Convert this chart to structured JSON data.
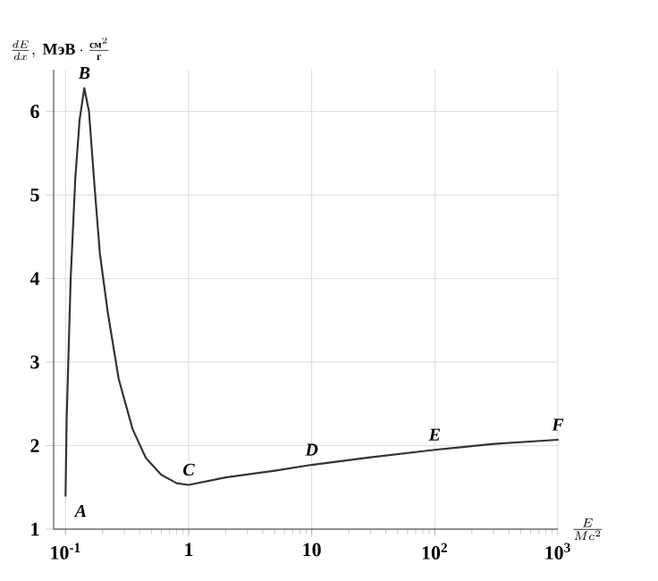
{
  "chart_data": {
    "type": "line",
    "xlabel": "\\frac{E}{Mc^2}",
    "ylabel": "\\frac{dE}{dx},\\ \\text{МэВ}\\cdot\\frac{\\text{см}^2}{\\text{г}}",
    "log": "x",
    "grid": true,
    "marker": "none",
    "line_style": "solid",
    "xlim": [
      0.08,
      1000
    ],
    "ylim": [
      1,
      6.5
    ],
    "xticks": [
      {
        "value": 0.1,
        "label": "10$^{-1}$"
      },
      1,
      10,
      {
        "value": 100,
        "label": "10$^{2}$"
      },
      {
        "value": 1000,
        "label": "10$^{3}$"
      }
    ],
    "yticks": [
      1,
      2,
      3,
      4,
      5,
      6
    ],
    "series": [
      {
        "color": "#333333",
        "x": [
          0.1,
          0.102,
          0.11,
          0.12,
          0.13,
          0.142,
          0.155,
          0.17,
          0.19,
          0.22,
          0.27,
          0.35,
          0.45,
          0.6,
          0.8,
          1.0,
          2,
          5,
          10,
          30,
          100,
          300,
          1000
        ],
        "values": [
          1.4,
          2.3,
          4.0,
          5.2,
          5.9,
          6.28,
          6.0,
          5.2,
          4.3,
          3.6,
          2.8,
          2.2,
          1.85,
          1.65,
          1.55,
          1.53,
          1.62,
          1.7,
          1.77,
          1.86,
          1.95,
          2.02,
          2.07
        ]
      }
    ],
    "annotations": [
      {
        "text": "A",
        "x": 0.1,
        "y": 1.4
      },
      {
        "text": "B",
        "x": 0.142,
        "y": 6.28
      },
      {
        "text": "C",
        "x": 1,
        "y": 1.53
      },
      {
        "text": "D",
        "x": 10,
        "y": 1.77
      },
      {
        "text": "E",
        "x": 100,
        "y": 1.95
      },
      {
        "text": "F",
        "x": 1000,
        "y": 2.07
      }
    ]
  }
}
